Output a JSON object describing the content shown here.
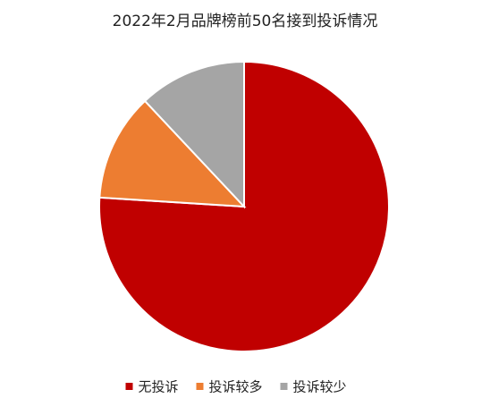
{
  "chart_data": {
    "type": "pie",
    "title": "2022年2月品牌榜前50名接到投诉情况",
    "categories": [
      "无投诉",
      "投诉较多",
      "投诉较少"
    ],
    "values": [
      76,
      12,
      12
    ],
    "colors": [
      "#c00000",
      "#ed7d31",
      "#a5a5a5"
    ]
  }
}
